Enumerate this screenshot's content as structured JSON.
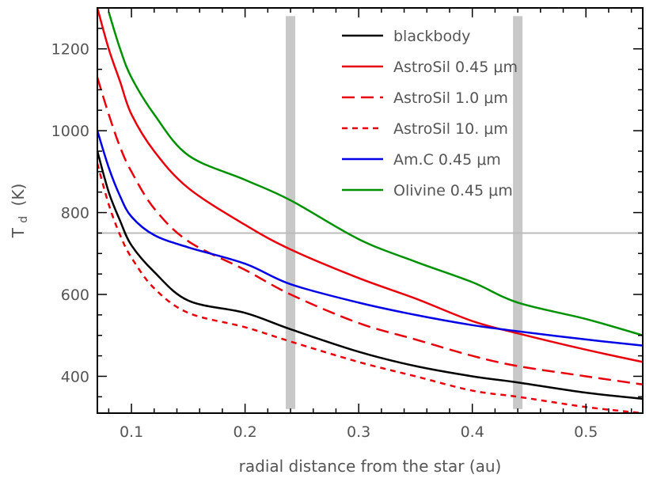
{
  "chart_data": {
    "type": "line",
    "xlabel": "radial distance from the star (au)",
    "ylabel_main": "T",
    "ylabel_sub": "d",
    "ylabel_unit": "(K)",
    "xlim": [
      0.07,
      0.55
    ],
    "ylim": [
      310,
      1300
    ],
    "x_ticks": [
      0.1,
      0.2,
      0.3,
      0.4,
      0.5
    ],
    "x_tick_labels": [
      "0.1",
      "0.2",
      "0.3",
      "0.4",
      "0.5"
    ],
    "y_ticks": [
      400,
      600,
      800,
      1000,
      1200
    ],
    "y_tick_labels": [
      "400",
      "600",
      "800",
      "1000",
      "1200"
    ],
    "grid": false,
    "legend_position": "top-right",
    "reference_line": {
      "y": 750,
      "color": "#bbbbbb"
    },
    "shaded_bands": [
      {
        "x": 0.24,
        "y_range": [
          320,
          1280
        ],
        "color": "#c8c8c8"
      },
      {
        "x": 0.44,
        "y_range": [
          320,
          1280
        ],
        "color": "#c8c8c8"
      }
    ],
    "series": [
      {
        "name": "blackbody",
        "color": "#000000",
        "dash": "solid",
        "x": [
          0.07,
          0.08,
          0.09,
          0.1,
          0.12,
          0.15,
          0.2,
          0.24,
          0.3,
          0.35,
          0.4,
          0.44,
          0.5,
          0.55
        ],
        "values": [
          950,
          850,
          780,
          720,
          655,
          585,
          555,
          515,
          460,
          425,
          400,
          385,
          360,
          345
        ]
      },
      {
        "name": "AstroSil 0.45 μm",
        "color": "#e8000b",
        "dash": "solid",
        "x": [
          0.07,
          0.08,
          0.09,
          0.1,
          0.12,
          0.15,
          0.2,
          0.24,
          0.3,
          0.35,
          0.4,
          0.44,
          0.5,
          0.55
        ],
        "values": [
          1300,
          1200,
          1120,
          1040,
          950,
          860,
          770,
          710,
          640,
          590,
          535,
          505,
          465,
          435
        ]
      },
      {
        "name": "AstroSil 1.0 μm",
        "color": "#e8000b",
        "dash": "long",
        "x": [
          0.07,
          0.08,
          0.09,
          0.1,
          0.12,
          0.15,
          0.2,
          0.24,
          0.3,
          0.35,
          0.4,
          0.44,
          0.5,
          0.55
        ],
        "values": [
          1130,
          1040,
          960,
          900,
          810,
          730,
          660,
          600,
          530,
          490,
          450,
          425,
          400,
          380
        ]
      },
      {
        "name": "AstroSil 10. μm",
        "color": "#e8000b",
        "dash": "short",
        "x": [
          0.07,
          0.08,
          0.09,
          0.1,
          0.12,
          0.15,
          0.2,
          0.24,
          0.3,
          0.35,
          0.4,
          0.44,
          0.5,
          0.55
        ],
        "values": [
          920,
          820,
          745,
          690,
          615,
          555,
          520,
          485,
          435,
          400,
          365,
          350,
          325,
          310
        ]
      },
      {
        "name": "Am.C 0.45 μm",
        "color": "#0000e6",
        "dash": "solid",
        "x": [
          0.07,
          0.08,
          0.09,
          0.1,
          0.12,
          0.15,
          0.2,
          0.24,
          0.3,
          0.35,
          0.4,
          0.44,
          0.5,
          0.55
        ],
        "values": [
          1000,
          910,
          840,
          790,
          745,
          715,
          675,
          625,
          580,
          550,
          525,
          510,
          490,
          475
        ]
      },
      {
        "name": "Olivine 0.45 μm",
        "color": "#009100",
        "dash": "solid",
        "x": [
          0.08,
          0.09,
          0.1,
          0.12,
          0.15,
          0.2,
          0.24,
          0.3,
          0.35,
          0.4,
          0.44,
          0.5,
          0.55
        ],
        "values": [
          1290,
          1200,
          1130,
          1040,
          940,
          880,
          830,
          735,
          680,
          630,
          580,
          540,
          500
        ]
      }
    ]
  }
}
